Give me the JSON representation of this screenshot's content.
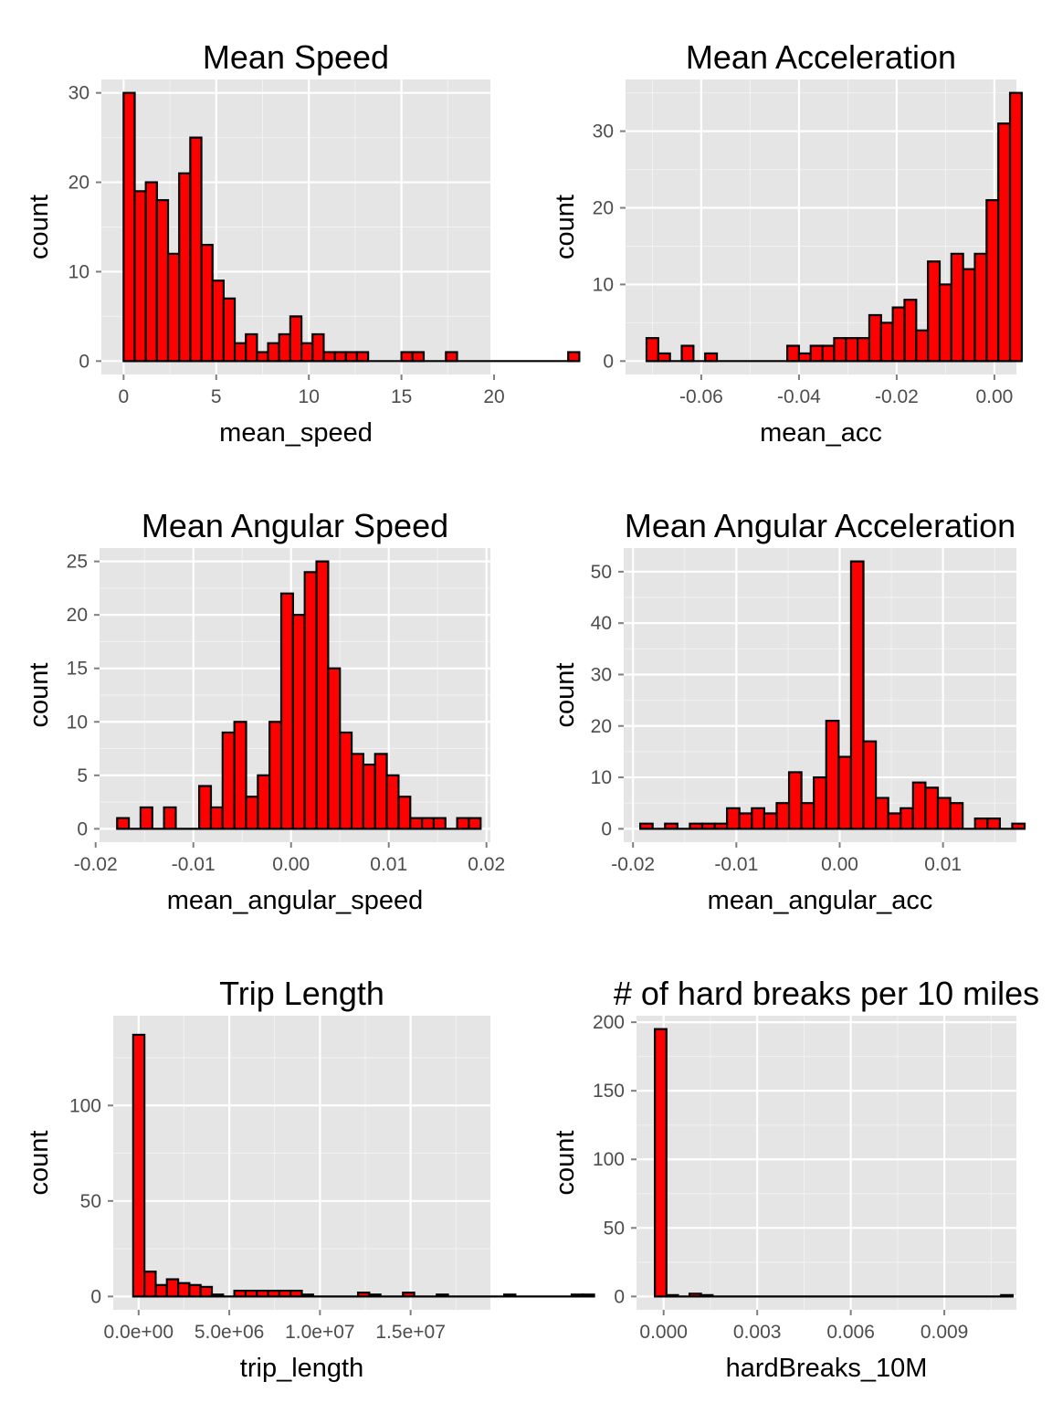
{
  "chart_data": [
    {
      "type": "bar",
      "title": "Mean Speed",
      "xlabel": "mean_speed",
      "ylabel": "count",
      "xlim": [
        -1.2,
        19.8
      ],
      "ylim": [
        -1.5,
        31.5
      ],
      "xticks": [
        0,
        5,
        10,
        15,
        20
      ],
      "xtick_labels": [
        "0",
        "5",
        "10",
        "15",
        "20"
      ],
      "yticks": [
        0,
        10,
        20,
        30
      ],
      "ytick_labels": [
        "0",
        "10",
        "20",
        "30"
      ],
      "bin_start": 0,
      "bin_width": 0.6,
      "values": [
        30,
        19,
        20,
        18,
        12,
        21,
        25,
        13,
        9,
        7,
        2,
        3,
        1,
        2,
        3,
        5,
        2,
        3,
        1,
        1,
        1,
        1,
        0,
        0,
        0,
        1,
        1,
        0,
        0,
        1,
        0,
        0,
        0,
        0,
        0,
        0,
        0,
        0,
        0,
        0,
        1
      ],
      "grid": true,
      "fill": "#ff0000",
      "panel_bg": "#e5e5e5"
    },
    {
      "type": "bar",
      "title": "Mean Acceleration",
      "xlabel": "mean_acc",
      "ylabel": "count",
      "xlim": [
        -0.0755,
        0.0045
      ],
      "ylim": [
        -1.75,
        36.75
      ],
      "xticks": [
        -0.06,
        -0.04,
        -0.02,
        0.0
      ],
      "xtick_labels": [
        "-0.06",
        "-0.04",
        "-0.02",
        "0.00"
      ],
      "yticks": [
        0,
        10,
        20,
        30
      ],
      "ytick_labels": [
        "0",
        "10",
        "20",
        "30"
      ],
      "bin_start": -0.0712,
      "bin_width": 0.0024,
      "values": [
        3,
        1,
        0,
        2,
        0,
        1,
        0,
        0,
        0,
        0,
        0,
        0,
        2,
        1,
        2,
        2,
        3,
        3,
        3,
        6,
        5,
        7,
        8,
        4,
        13,
        10,
        14,
        12,
        14,
        21,
        31,
        35
      ],
      "grid": true,
      "fill": "#ff0000",
      "panel_bg": "#e5e5e5"
    },
    {
      "type": "bar",
      "title": "Mean Angular Speed",
      "xlabel": "mean_angular_speed",
      "ylabel": "count",
      "xlim": [
        -0.0196,
        0.0204
      ],
      "ylim": [
        -1.25,
        26.25
      ],
      "xticks": [
        -0.02,
        -0.01,
        0.0,
        0.01,
        0.02
      ],
      "xtick_labels": [
        "-0.02",
        "-0.01",
        "0.00",
        "0.01",
        "0.02"
      ],
      "yticks": [
        0,
        5,
        10,
        15,
        20,
        25
      ],
      "ytick_labels": [
        "0",
        "5",
        "10",
        "15",
        "20",
        "25"
      ],
      "bin_start": -0.0178,
      "bin_width": 0.0012,
      "values": [
        1,
        0,
        2,
        0,
        2,
        0,
        0,
        4,
        2,
        9,
        10,
        3,
        5,
        10,
        22,
        20,
        24,
        25,
        15,
        9,
        7,
        6,
        7,
        5,
        3,
        1,
        1,
        1,
        0,
        1,
        1
      ],
      "grid": true,
      "fill": "#ff0000",
      "panel_bg": "#e5e5e5"
    },
    {
      "type": "bar",
      "title": "Mean Angular Acceleration",
      "xlabel": "mean_angular_acc",
      "ylabel": "count",
      "xlim": [
        -0.0209,
        0.0171
      ],
      "ylim": [
        -2.6,
        54.6
      ],
      "xticks": [
        -0.02,
        -0.01,
        0.0,
        0.01
      ],
      "xtick_labels": [
        "-0.02",
        "-0.01",
        "0.00",
        "0.01"
      ],
      "yticks": [
        0,
        10,
        20,
        30,
        40,
        50
      ],
      "ytick_labels": [
        "0",
        "10",
        "20",
        "30",
        "40",
        "50"
      ],
      "bin_start": -0.0193,
      "bin_width": 0.0012,
      "values": [
        1,
        0,
        1,
        0,
        1,
        1,
        1,
        4,
        3,
        4,
        3,
        5,
        11,
        5,
        10,
        21,
        14,
        52,
        17,
        6,
        3,
        4,
        9,
        8,
        6,
        5,
        0,
        2,
        2,
        0,
        1
      ],
      "grid": true,
      "fill": "#ff0000",
      "panel_bg": "#e5e5e5"
    },
    {
      "type": "bar",
      "title": "Trip Length",
      "xlabel": "trip_length",
      "ylabel": "count",
      "xlim": [
        -1400000,
        19400000
      ],
      "ylim": [
        -7,
        147
      ],
      "xticks": [
        0,
        5000000,
        10000000,
        15000000
      ],
      "xtick_labels": [
        "0.0e+00",
        "5.0e+06",
        "1.0e+07",
        "1.5e+07"
      ],
      "yticks": [
        0,
        50,
        100
      ],
      "ytick_labels": [
        "0",
        "50",
        "100"
      ],
      "bin_start": -300000,
      "bin_width": 620000,
      "values": [
        137,
        13,
        6,
        9,
        7,
        6,
        5,
        1,
        0,
        3,
        3,
        3,
        3,
        3,
        3,
        1,
        0,
        0,
        0,
        0,
        2,
        1,
        0,
        0,
        2,
        0,
        0,
        1,
        0,
        0,
        0,
        0,
        0,
        1,
        0,
        0,
        0,
        0,
        0,
        1,
        1
      ],
      "grid": true,
      "fill": "#ff0000",
      "panel_bg": "#e5e5e5"
    },
    {
      "type": "bar",
      "title": "# of hard breaks per 10 miles",
      "xlabel": "hardBreaks_10M",
      "ylabel": "count",
      "xlim": [
        -0.00087,
        0.01131
      ],
      "ylim": [
        -9.75,
        204.75
      ],
      "xticks": [
        0,
        0.003,
        0.006,
        0.009
      ],
      "xtick_labels": [
        "0.000",
        "0.003",
        "0.006",
        "0.009"
      ],
      "yticks": [
        0,
        50,
        100,
        150,
        200
      ],
      "ytick_labels": [
        "0",
        "50",
        "100",
        "150",
        "200"
      ],
      "bin_start": -0.00028,
      "bin_width": 0.00037,
      "values": [
        195,
        1,
        0,
        2,
        1,
        0,
        0,
        0,
        0,
        0,
        0,
        0,
        0,
        0,
        0,
        0,
        0,
        0,
        0,
        0,
        0,
        0,
        0,
        0,
        0,
        0,
        0,
        0,
        0,
        0,
        1
      ],
      "grid": true,
      "fill": "#ff0000",
      "panel_bg": "#e5e5e5"
    }
  ]
}
